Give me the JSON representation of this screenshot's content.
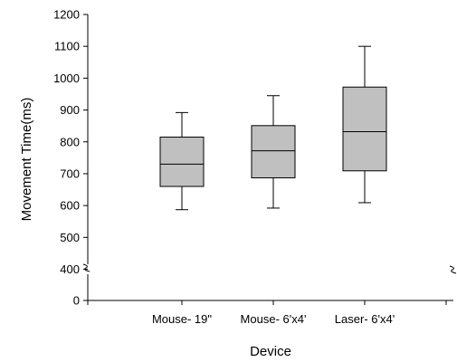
{
  "chart_data": {
    "type": "box",
    "title": "",
    "xlabel": "Device",
    "ylabel": "Movement Time(ms)",
    "ylim": [
      0,
      1200
    ],
    "axis_break": [
      0,
      400
    ],
    "yticks": [
      0,
      400,
      500,
      600,
      700,
      800,
      900,
      1000,
      1100,
      1200
    ],
    "ytick_labels": [
      "0",
      "400",
      "500",
      "600",
      "700",
      "800",
      "900",
      "1000",
      "1100",
      "1200"
    ],
    "categories": [
      "Mouse- 19\"",
      "Mouse- 6'x4'",
      "Laser- 6'x4'"
    ],
    "boxes": [
      {
        "category": "Mouse- 19\"",
        "min": 587,
        "q1": 660,
        "median": 730,
        "q3": 815,
        "max": 892
      },
      {
        "category": "Mouse- 6'x4'",
        "min": 592,
        "q1": 687,
        "median": 772,
        "q3": 851,
        "max": 945
      },
      {
        "category": "Laser- 6'x4'",
        "min": 609,
        "q1": 709,
        "median": 832,
        "q3": 972,
        "max": 1100
      }
    ],
    "box_fill": "#c0c0c0",
    "line_color": "#000000",
    "grid": false,
    "legend": "none"
  }
}
